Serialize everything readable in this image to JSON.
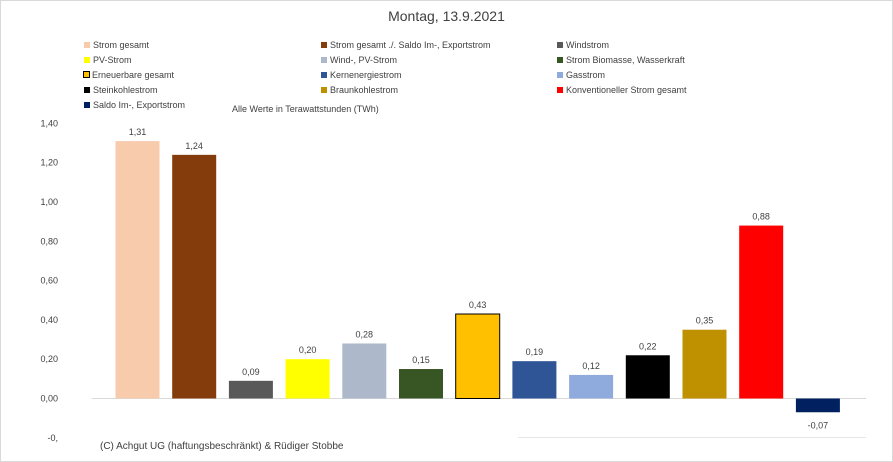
{
  "chart_data": {
    "type": "bar",
    "title": "Montag, 13.9.2021",
    "note": "Alle Werte in Terawattstunden (TWh)",
    "footer": "(C) Achgut UG (haftungsbeschränkt) & Rüdiger Stobbe",
    "ylim": [
      -0.2,
      1.4
    ],
    "y_ticks": [
      "1,40",
      "1,20",
      "1,00",
      "0,80",
      "0,60",
      "0,40",
      "0,20",
      "0,00",
      "-0,"
    ],
    "grid": false,
    "legend_position": "top",
    "categories": [
      "Strom gesamt",
      "Strom gesamt ./. Saldo Im-, Exportstrom",
      "Windstrom",
      "PV-Strom",
      "Wind-, PV-Strom",
      "Strom Biomasse, Wasserkraft",
      "Erneuerbare gesamt",
      "Kernenergiestrom",
      "Gasstrom",
      "Steinkohlestrom",
      "Braunkohlestrom",
      "Konventioneller Strom gesamt",
      "Saldo Im-, Exportstrom"
    ],
    "values": [
      1.31,
      1.24,
      0.09,
      0.2,
      0.28,
      0.15,
      0.43,
      0.19,
      0.12,
      0.22,
      0.35,
      0.88,
      -0.07
    ],
    "value_labels": [
      "1,31",
      "1,24",
      "0,09",
      "0,20",
      "0,28",
      "0,15",
      "0,43",
      "0,19",
      "0,12",
      "0,22",
      "0,35",
      "0,88",
      "-0,07"
    ],
    "colors": [
      "#f8cbad",
      "#843c0c",
      "#595959",
      "#ffff00",
      "#adb9ca",
      "#375623",
      "#ffc000",
      "#2f5597",
      "#8faadc",
      "#000000",
      "#bf9000",
      "#ff0000",
      "#002060"
    ]
  }
}
